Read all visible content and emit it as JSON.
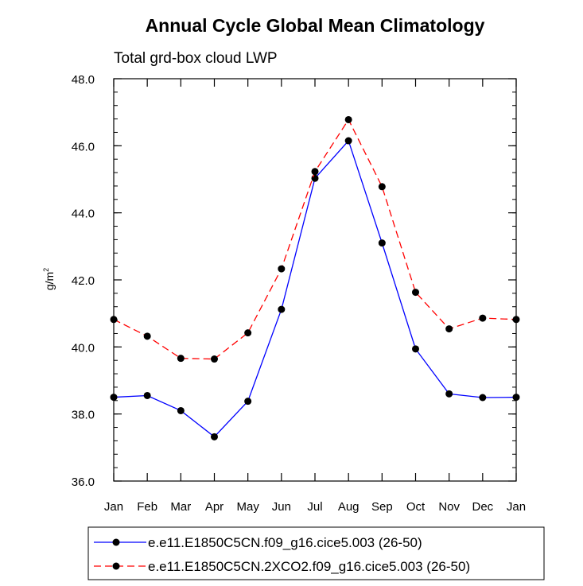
{
  "chart_data": {
    "type": "line",
    "title": "Annual Cycle Global Mean Climatology",
    "subtitle": "Total grd-box cloud LWP",
    "ylabel": "g/m",
    "ylabel_sup": "2",
    "xlabel": "",
    "categories": [
      "Jan",
      "Feb",
      "Mar",
      "Apr",
      "May",
      "Jun",
      "Jul",
      "Aug",
      "Sep",
      "Oct",
      "Nov",
      "Dec",
      "Jan"
    ],
    "ylim": [
      36.0,
      48.0
    ],
    "yticks": [
      "36.0",
      "38.0",
      "40.0",
      "42.0",
      "44.0",
      "46.0",
      "48.0"
    ],
    "legend_position": "bottom",
    "grid": false,
    "series": [
      {
        "name": "e.e11.E1850C5CN.f09_g16.cice5.003 (26-50)",
        "color": "#0000ff",
        "style": "solid",
        "values": [
          38.5,
          38.55,
          38.1,
          37.32,
          38.38,
          41.12,
          45.03,
          46.15,
          43.1,
          39.94,
          38.6,
          38.49,
          38.5
        ]
      },
      {
        "name": "e.e11.E1850C5CN.2XCO2.f09_g16.cice5.003 (26-50)",
        "color": "#ff0000",
        "style": "dashed",
        "values": [
          40.82,
          40.32,
          39.66,
          39.64,
          40.42,
          42.33,
          45.23,
          46.78,
          44.78,
          41.63,
          40.54,
          40.86,
          40.82
        ]
      }
    ]
  }
}
